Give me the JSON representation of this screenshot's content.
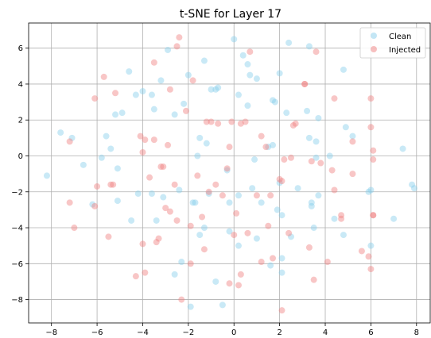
{
  "chart_data": {
    "type": "scatter",
    "title": "t-SNE for Layer 17",
    "xlabel": "",
    "ylabel": "",
    "xlim": [
      -9,
      8.6
    ],
    "ylim": [
      -9.3,
      7.4
    ],
    "xticks": [
      -8,
      -6,
      -4,
      -2,
      0,
      2,
      4,
      6,
      8
    ],
    "yticks": [
      -8,
      -6,
      -4,
      -2,
      0,
      2,
      4,
      6
    ],
    "xtick_labels": [
      "−8",
      "−6",
      "−4",
      "−2",
      "0",
      "2",
      "4",
      "6",
      "8"
    ],
    "ytick_labels": [
      "−8",
      "−6",
      "−4",
      "−2",
      "0",
      "2",
      "4",
      "6"
    ],
    "grid": true,
    "legend_position": "top-right",
    "series": [
      {
        "name": "Clean",
        "color": "#87CEEB",
        "points": [
          [
            -8.2,
            -1.1
          ],
          [
            -7.6,
            1.3
          ],
          [
            -7.1,
            1.0
          ],
          [
            -6.6,
            -0.5
          ],
          [
            -6.2,
            -2.7
          ],
          [
            -5.8,
            -0.1
          ],
          [
            -5.6,
            1.1
          ],
          [
            -5.4,
            0.4
          ],
          [
            -5.2,
            2.3
          ],
          [
            -5.1,
            -2.5
          ],
          [
            -5.1,
            -0.7
          ],
          [
            -4.9,
            2.4
          ],
          [
            -4.6,
            4.7
          ],
          [
            -4.5,
            -3.6
          ],
          [
            -4.2,
            -2.1
          ],
          [
            -4.3,
            3.4
          ],
          [
            -4.0,
            3.6
          ],
          [
            -3.6,
            3.4
          ],
          [
            -3.5,
            2.6
          ],
          [
            -3.6,
            -2.1
          ],
          [
            -3.4,
            -3.6
          ],
          [
            -3.1,
            -2.3
          ],
          [
            -2.9,
            5.9
          ],
          [
            -3.2,
            4.2
          ],
          [
            -2.6,
            2.3
          ],
          [
            -2.6,
            -6.6
          ],
          [
            -2.4,
            -1.9
          ],
          [
            -2.2,
            2.9
          ],
          [
            -2.3,
            -5.9
          ],
          [
            -2.0,
            4.5
          ],
          [
            -1.9,
            -8.4
          ],
          [
            -1.8,
            -2.6
          ],
          [
            -1.7,
            -2.6
          ],
          [
            -1.6,
            0.0
          ],
          [
            -1.5,
            1.0
          ],
          [
            -1.5,
            -4.4
          ],
          [
            -1.3,
            -4.0
          ],
          [
            -1.2,
            0.7
          ],
          [
            -1.0,
            3.7
          ],
          [
            -0.8,
            3.7
          ],
          [
            -0.7,
            3.8
          ],
          [
            -1.1,
            -2.1
          ],
          [
            -1.3,
            5.3
          ],
          [
            -0.8,
            -7.0
          ],
          [
            -0.5,
            -8.3
          ],
          [
            -0.3,
            -0.8
          ],
          [
            -0.2,
            -2.6
          ],
          [
            0.0,
            6.5
          ],
          [
            0.2,
            -2.2
          ],
          [
            0.2,
            -5.0
          ],
          [
            0.2,
            3.4
          ],
          [
            0.4,
            5.6
          ],
          [
            0.6,
            5.1
          ],
          [
            0.6,
            2.8
          ],
          [
            0.7,
            4.5
          ],
          [
            0.8,
            -1.8
          ],
          [
            0.9,
            -0.2
          ],
          [
            1.0,
            -4.6
          ],
          [
            1.0,
            4.3
          ],
          [
            1.2,
            -2.6
          ],
          [
            1.5,
            0.5
          ],
          [
            1.6,
            -6.1
          ],
          [
            1.7,
            3.1
          ],
          [
            1.8,
            3.0
          ],
          [
            1.9,
            -3.0
          ],
          [
            2.0,
            4.6
          ],
          [
            2.0,
            -1.5
          ],
          [
            2.1,
            -3.3
          ],
          [
            2.1,
            -6.5
          ],
          [
            2.1,
            -5.7
          ],
          [
            2.3,
            2.4
          ],
          [
            2.4,
            6.3
          ],
          [
            2.5,
            -4.5
          ],
          [
            2.8,
            -1.8
          ],
          [
            3.2,
            2.5
          ],
          [
            3.3,
            1.0
          ],
          [
            3.3,
            6.1
          ],
          [
            3.4,
            -2.8
          ],
          [
            3.4,
            -2.6
          ],
          [
            3.5,
            -4.0
          ],
          [
            3.6,
            0.8
          ],
          [
            3.6,
            -0.1
          ],
          [
            3.7,
            -2.2
          ],
          [
            3.7,
            2.1
          ],
          [
            4.2,
            0.0
          ],
          [
            4.4,
            -3.5
          ],
          [
            4.8,
            4.8
          ],
          [
            4.8,
            -4.4
          ],
          [
            4.9,
            1.6
          ],
          [
            5.2,
            1.1
          ],
          [
            5.9,
            -2.0
          ],
          [
            6.0,
            -1.9
          ],
          [
            6.0,
            -5.0
          ],
          [
            7.0,
            -3.5
          ],
          [
            7.4,
            0.4
          ],
          [
            7.8,
            -1.6
          ],
          [
            7.9,
            -1.8
          ],
          [
            -0.2,
            -4.2
          ],
          [
            1.7,
            0.6
          ]
        ]
      },
      {
        "name": "Injected",
        "color": "#F08080",
        "points": [
          [
            -7.2,
            0.8
          ],
          [
            -7.2,
            -2.6
          ],
          [
            -7.0,
            -4.0
          ],
          [
            -6.1,
            3.2
          ],
          [
            -6.0,
            -1.7
          ],
          [
            -5.7,
            4.4
          ],
          [
            -5.4,
            -1.6
          ],
          [
            -5.3,
            -1.6
          ],
          [
            -5.5,
            -4.5
          ],
          [
            -5.2,
            3.5
          ],
          [
            -4.3,
            -6.7
          ],
          [
            -4.0,
            -4.9
          ],
          [
            -4.1,
            1.1
          ],
          [
            -4.0,
            0.2
          ],
          [
            -3.9,
            -6.5
          ],
          [
            -3.9,
            0.9
          ],
          [
            -3.7,
            -1.2
          ],
          [
            -3.5,
            5.2
          ],
          [
            -3.5,
            0.9
          ],
          [
            -3.4,
            -4.8
          ],
          [
            -3.3,
            -4.6
          ],
          [
            -3.2,
            -0.6
          ],
          [
            -3.1,
            -0.6
          ],
          [
            -3.0,
            -2.9
          ],
          [
            -2.9,
            0.6
          ],
          [
            -2.8,
            -3.1
          ],
          [
            -2.8,
            3.7
          ],
          [
            -2.6,
            -1.6
          ],
          [
            -2.5,
            6.1
          ],
          [
            -2.4,
            6.6
          ],
          [
            -2.3,
            -8.0
          ],
          [
            -2.5,
            -3.6
          ],
          [
            -2.1,
            2.5
          ],
          [
            -1.9,
            -6.0
          ],
          [
            -1.9,
            -3.9
          ],
          [
            -1.8,
            4.2
          ],
          [
            -1.6,
            -1.1
          ],
          [
            -1.4,
            -3.4
          ],
          [
            -1.3,
            -5.2
          ],
          [
            -1.1,
            -2.0
          ],
          [
            -1.0,
            1.9
          ],
          [
            -0.8,
            -1.6
          ],
          [
            -0.7,
            1.8
          ],
          [
            -0.5,
            -2.2
          ],
          [
            -0.3,
            -0.7
          ],
          [
            -0.2,
            -7.1
          ],
          [
            -0.2,
            0.5
          ],
          [
            -0.1,
            1.9
          ],
          [
            0.0,
            -4.4
          ],
          [
            0.1,
            -3.2
          ],
          [
            0.2,
            -7.2
          ],
          [
            0.3,
            1.8
          ],
          [
            0.3,
            -6.6
          ],
          [
            0.5,
            1.9
          ],
          [
            0.6,
            -4.3
          ],
          [
            0.7,
            5.8
          ],
          [
            1.0,
            -2.2
          ],
          [
            1.2,
            1.1
          ],
          [
            1.2,
            -5.9
          ],
          [
            1.4,
            0.5
          ],
          [
            1.5,
            -3.9
          ],
          [
            1.6,
            -2.2
          ],
          [
            1.7,
            -5.7
          ],
          [
            2.0,
            -1.3
          ],
          [
            2.1,
            -1.4
          ],
          [
            2.1,
            -8.6
          ],
          [
            2.2,
            -0.2
          ],
          [
            2.4,
            -4.3
          ],
          [
            2.5,
            -0.1
          ],
          [
            2.6,
            1.7
          ],
          [
            2.7,
            1.8
          ],
          [
            3.1,
            4.0
          ],
          [
            3.1,
            4.0
          ],
          [
            3.3,
            -5.1
          ],
          [
            3.4,
            -0.3
          ],
          [
            3.5,
            -6.9
          ],
          [
            3.6,
            5.8
          ],
          [
            3.8,
            -0.4
          ],
          [
            4.1,
            -5.9
          ],
          [
            4.4,
            3.2
          ],
          [
            4.4,
            -1.9
          ],
          [
            4.3,
            -0.8
          ],
          [
            4.7,
            -3.3
          ],
          [
            4.7,
            -3.5
          ],
          [
            5.2,
            0.8
          ],
          [
            5.2,
            -1.0
          ],
          [
            5.6,
            -5.3
          ],
          [
            5.9,
            -5.6
          ],
          [
            6.0,
            1.6
          ],
          [
            6.0,
            3.2
          ],
          [
            6.1,
            0.3
          ],
          [
            6.1,
            -0.2
          ],
          [
            6.1,
            -3.3
          ],
          [
            6.1,
            -3.3
          ],
          [
            6.0,
            -6.3
          ],
          [
            -6.1,
            -2.8
          ],
          [
            -1.2,
            1.9
          ]
        ]
      }
    ]
  }
}
